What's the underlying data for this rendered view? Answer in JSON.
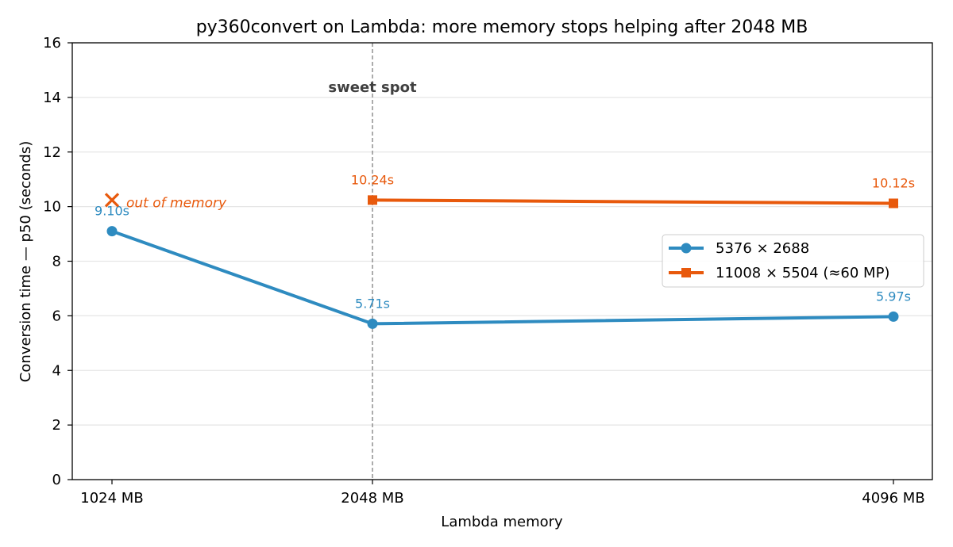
{
  "chart_data": {
    "type": "line",
    "title": "py360convert on Lambda: more memory stops helping after 2048 MB",
    "xlabel": "Lambda memory",
    "ylabel": "Conversion time — p50 (seconds)",
    "ylim": [
      0,
      16
    ],
    "yticks": [
      0,
      2,
      4,
      6,
      8,
      10,
      12,
      14,
      16
    ],
    "x_values": [
      1024,
      2048,
      4096
    ],
    "categories": [
      "1024 MB",
      "2048 MB",
      "4096 MB"
    ],
    "grid": "horizontal",
    "legend_position": "center-right",
    "series": [
      {
        "name": "5376 × 2688",
        "color": "#2e8bc0",
        "marker": "circle",
        "points": [
          {
            "x": 1024,
            "y": 9.1,
            "label": "9.10s"
          },
          {
            "x": 2048,
            "y": 5.71,
            "label": "5.71s"
          },
          {
            "x": 4096,
            "y": 5.97,
            "label": "5.97s"
          }
        ]
      },
      {
        "name": "11008 × 5504 (≈60 MP)",
        "color": "#e8590c",
        "marker": "square",
        "points": [
          {
            "x": 2048,
            "y": 10.24,
            "label": "10.24s"
          },
          {
            "x": 4096,
            "y": 10.12,
            "label": "10.12s"
          }
        ]
      }
    ],
    "annotations": {
      "sweet_spot": {
        "text": "sweet spot",
        "x": 2048
      },
      "oom": {
        "text": "out of memory",
        "x": 1024,
        "y": 10.24,
        "marker": "x",
        "color": "#e8590c"
      }
    }
  }
}
